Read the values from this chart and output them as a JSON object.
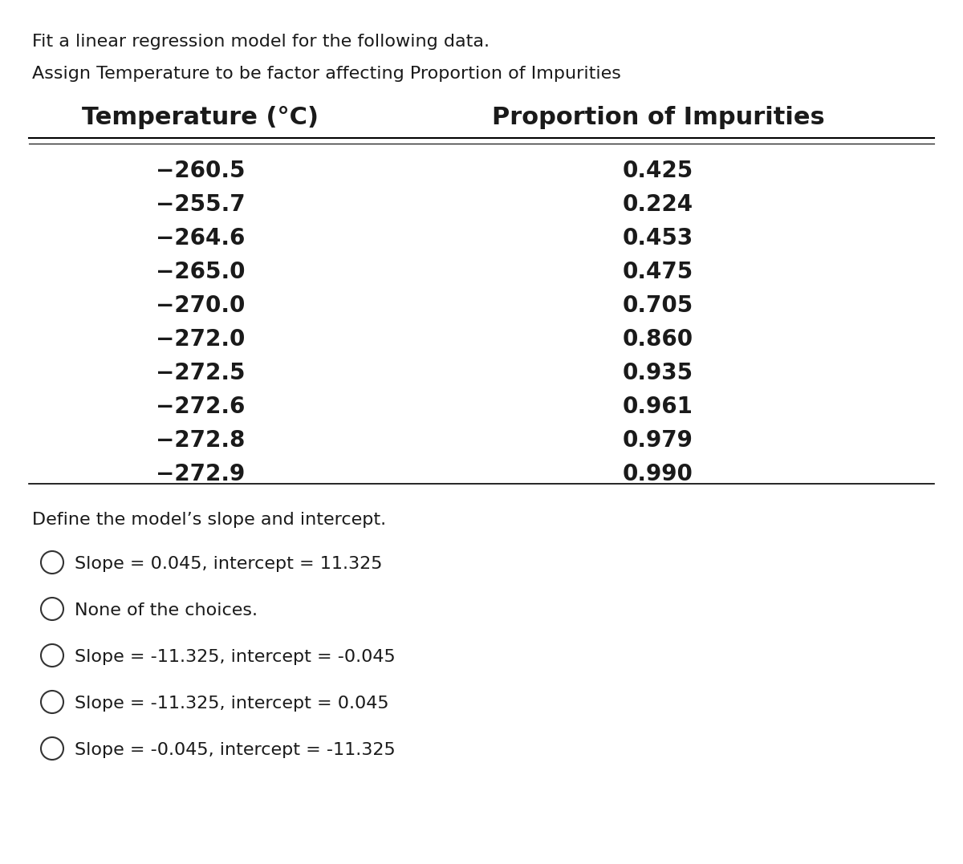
{
  "title_line1": "Fit a linear regression model for the following data.",
  "title_line2": "Assign Temperature to be factor affecting Proportion of Impurities",
  "col1_header": "Temperature (°C)",
  "col2_header": "Proportion of Impurities",
  "temperatures": [
    "−260.5",
    "−255.7",
    "−264.6",
    "−265.0",
    "−270.0",
    "−272.0",
    "−272.5",
    "−272.6",
    "−272.8",
    "−272.9"
  ],
  "proportions": [
    "0.425",
    "0.224",
    "0.453",
    "0.475",
    "0.705",
    "0.860",
    "0.935",
    "0.961",
    "0.979",
    "0.990"
  ],
  "question": "Define the model’s slope and intercept.",
  "choices": [
    "Slope = 0.045, intercept = 11.325",
    "None of the choices.",
    "Slope = -11.325, intercept = -0.045",
    "Slope = -11.325, intercept = 0.045",
    "Slope = -0.045, intercept = -11.325"
  ],
  "bg_color": "#ffffff",
  "text_color": "#1a1a1a",
  "header_fontsize": 22,
  "body_fontsize": 20,
  "small_fontsize": 16,
  "choice_fontsize": 16
}
